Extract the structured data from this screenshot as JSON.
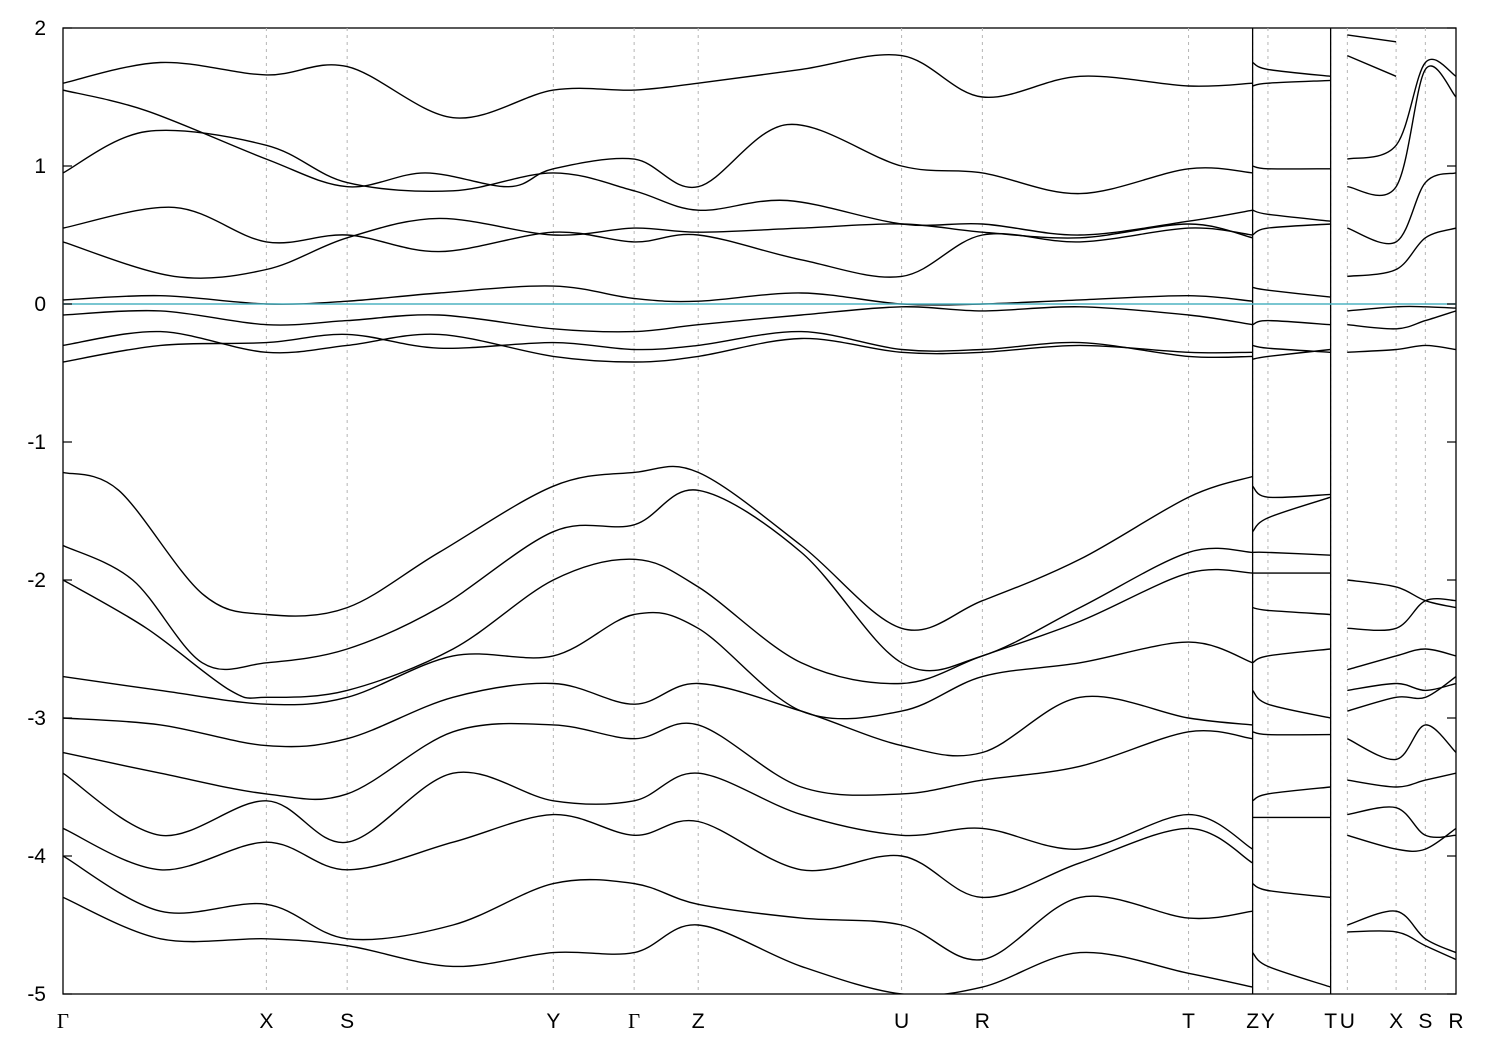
{
  "chart_data": {
    "type": "line",
    "title": "",
    "xlabel": "",
    "ylabel": "",
    "ylim": [
      -5,
      2
    ],
    "yticks": [
      2,
      1,
      0,
      -1,
      -2,
      -3,
      -4,
      -5
    ],
    "grid": "vertical dashed lines at high-symmetry k-points",
    "legend": "none",
    "kpoints": [
      {
        "label": "Γ",
        "x": 0.0
      },
      {
        "label": "X",
        "x": 0.146
      },
      {
        "label": "S",
        "x": 0.204
      },
      {
        "label": "Y",
        "x": 0.352
      },
      {
        "label": "Γ",
        "x": 0.41
      },
      {
        "label": "Z",
        "x": 0.456
      },
      {
        "label": "U",
        "x": 0.602
      },
      {
        "label": "R",
        "x": 0.66
      },
      {
        "label": "T",
        "x": 0.808
      },
      {
        "label": "Z",
        "x": 0.854
      },
      {
        "label": "Y",
        "x": 0.865
      },
      {
        "label": "T",
        "x": 0.91
      },
      {
        "label": "U",
        "x": 0.922
      },
      {
        "label": "X",
        "x": 0.957
      },
      {
        "label": "S",
        "x": 0.978
      },
      {
        "label": "R",
        "x": 1.0
      }
    ],
    "discontinuities_after": [
      "Z",
      "T"
    ],
    "fermi_level": 0,
    "fermi_color": "#4fb3c2",
    "band_color": "#000000",
    "series": [
      {
        "x": [
          0,
          0.07,
          0.146,
          0.204,
          0.28,
          0.352,
          0.41,
          0.456,
          0.53,
          0.602,
          0.66,
          0.73,
          0.808,
          0.854
        ],
        "y": [
          1.6,
          1.75,
          1.66,
          1.72,
          1.35,
          1.55,
          1.55,
          1.6,
          1.7,
          1.8,
          1.5,
          1.65,
          1.58,
          1.6
        ]
      },
      {
        "x": [
          0,
          0.06,
          0.146,
          0.204,
          0.26,
          0.32,
          0.352,
          0.41,
          0.456,
          0.52,
          0.602,
          0.66,
          0.73,
          0.808,
          0.854
        ],
        "y": [
          1.55,
          1.4,
          1.05,
          0.85,
          0.95,
          0.85,
          0.98,
          1.05,
          0.85,
          1.3,
          1.0,
          0.95,
          0.8,
          0.98,
          0.95
        ]
      },
      {
        "x": [
          0,
          0.06,
          0.146,
          0.204,
          0.28,
          0.352,
          0.41,
          0.456,
          0.52,
          0.602,
          0.66,
          0.73,
          0.808,
          0.854
        ],
        "y": [
          0.95,
          1.25,
          1.15,
          0.88,
          0.82,
          0.95,
          0.82,
          0.68,
          0.75,
          0.58,
          0.58,
          0.5,
          0.6,
          0.68
        ]
      },
      {
        "x": [
          0,
          0.08,
          0.146,
          0.204,
          0.27,
          0.352,
          0.41,
          0.456,
          0.53,
          0.602,
          0.66,
          0.73,
          0.808,
          0.854
        ],
        "y": [
          0.55,
          0.7,
          0.45,
          0.5,
          0.38,
          0.52,
          0.45,
          0.5,
          0.32,
          0.2,
          0.5,
          0.45,
          0.55,
          0.5
        ]
      },
      {
        "x": [
          0,
          0.08,
          0.146,
          0.204,
          0.27,
          0.352,
          0.41,
          0.456,
          0.53,
          0.602,
          0.66,
          0.73,
          0.808,
          0.854
        ],
        "y": [
          0.45,
          0.2,
          0.25,
          0.48,
          0.62,
          0.5,
          0.55,
          0.52,
          0.55,
          0.58,
          0.52,
          0.48,
          0.58,
          0.48
        ]
      },
      {
        "x": [
          0,
          0.07,
          0.146,
          0.204,
          0.27,
          0.352,
          0.41,
          0.456,
          0.53,
          0.602,
          0.66,
          0.73,
          0.808,
          0.854
        ],
        "y": [
          0.03,
          0.06,
          0.0,
          0.02,
          0.08,
          0.13,
          0.04,
          0.02,
          0.08,
          0.0,
          0.0,
          0.03,
          0.06,
          0.02
        ]
      },
      {
        "x": [
          0,
          0.07,
          0.146,
          0.204,
          0.27,
          0.352,
          0.41,
          0.456,
          0.53,
          0.602,
          0.66,
          0.73,
          0.808,
          0.854
        ],
        "y": [
          -0.08,
          -0.05,
          -0.15,
          -0.12,
          -0.08,
          -0.18,
          -0.2,
          -0.15,
          -0.08,
          -0.02,
          -0.05,
          -0.02,
          -0.08,
          -0.15
        ]
      },
      {
        "x": [
          0,
          0.07,
          0.146,
          0.204,
          0.27,
          0.352,
          0.41,
          0.456,
          0.53,
          0.602,
          0.66,
          0.73,
          0.808,
          0.854
        ],
        "y": [
          -0.3,
          -0.2,
          -0.35,
          -0.3,
          -0.22,
          -0.38,
          -0.42,
          -0.38,
          -0.25,
          -0.35,
          -0.35,
          -0.3,
          -0.35,
          -0.35
        ]
      },
      {
        "x": [
          0,
          0.07,
          0.146,
          0.204,
          0.27,
          0.352,
          0.41,
          0.456,
          0.53,
          0.602,
          0.66,
          0.73,
          0.808,
          0.854
        ],
        "y": [
          -0.42,
          -0.3,
          -0.28,
          -0.22,
          -0.32,
          -0.28,
          -0.33,
          -0.3,
          -0.2,
          -0.33,
          -0.33,
          -0.28,
          -0.38,
          -0.38
        ]
      },
      {
        "x": [
          0,
          0.04,
          0.1,
          0.146,
          0.204,
          0.27,
          0.352,
          0.41,
          0.456,
          0.53,
          0.602,
          0.66,
          0.73,
          0.808,
          0.854
        ],
        "y": [
          -1.22,
          -1.35,
          -2.1,
          -2.25,
          -2.2,
          -1.8,
          -1.32,
          -1.22,
          -1.22,
          -1.75,
          -2.35,
          -2.15,
          -1.85,
          -1.4,
          -1.25
        ]
      },
      {
        "x": [
          0,
          0.05,
          0.1,
          0.146,
          0.204,
          0.27,
          0.352,
          0.41,
          0.456,
          0.53,
          0.602,
          0.66,
          0.73,
          0.808,
          0.854
        ],
        "y": [
          -1.75,
          -2.0,
          -2.6,
          -2.6,
          -2.5,
          -2.2,
          -1.65,
          -1.6,
          -1.35,
          -1.8,
          -2.6,
          -2.55,
          -2.2,
          -1.8,
          -1.8
        ]
      },
      {
        "x": [
          0,
          0.06,
          0.12,
          0.146,
          0.204,
          0.28,
          0.352,
          0.41,
          0.456,
          0.53,
          0.602,
          0.66,
          0.73,
          0.808,
          0.854
        ],
        "y": [
          -2.0,
          -2.35,
          -2.8,
          -2.85,
          -2.8,
          -2.5,
          -2.0,
          -1.85,
          -2.05,
          -2.6,
          -2.75,
          -2.55,
          -2.3,
          -1.95,
          -1.95
        ]
      },
      {
        "x": [
          0,
          0.07,
          0.146,
          0.204,
          0.28,
          0.352,
          0.41,
          0.456,
          0.53,
          0.602,
          0.66,
          0.73,
          0.808,
          0.854
        ],
        "y": [
          -2.7,
          -2.8,
          -2.9,
          -2.85,
          -2.55,
          -2.55,
          -2.25,
          -2.35,
          -2.95,
          -2.95,
          -2.7,
          -2.6,
          -2.45,
          -2.6
        ]
      },
      {
        "x": [
          0,
          0.07,
          0.146,
          0.204,
          0.28,
          0.352,
          0.41,
          0.456,
          0.53,
          0.602,
          0.66,
          0.73,
          0.808,
          0.854
        ],
        "y": [
          -3.0,
          -3.05,
          -3.2,
          -3.15,
          -2.85,
          -2.75,
          -2.9,
          -2.75,
          -2.95,
          -3.2,
          -3.25,
          -2.85,
          -3.0,
          -3.05
        ]
      },
      {
        "x": [
          0,
          0.07,
          0.146,
          0.204,
          0.28,
          0.352,
          0.41,
          0.456,
          0.53,
          0.602,
          0.66,
          0.73,
          0.808,
          0.854
        ],
        "y": [
          -3.25,
          -3.4,
          -3.55,
          -3.55,
          -3.1,
          -3.05,
          -3.15,
          -3.05,
          -3.5,
          -3.55,
          -3.45,
          -3.35,
          -3.1,
          -3.15
        ]
      },
      {
        "x": [
          0,
          0.07,
          0.146,
          0.204,
          0.28,
          0.352,
          0.41,
          0.456,
          0.53,
          0.602,
          0.66,
          0.73,
          0.808,
          0.854
        ],
        "y": [
          -3.4,
          -3.85,
          -3.6,
          -3.9,
          -3.4,
          -3.6,
          -3.6,
          -3.4,
          -3.7,
          -3.85,
          -3.8,
          -3.95,
          -3.7,
          -3.95
        ]
      },
      {
        "x": [
          0,
          0.07,
          0.146,
          0.204,
          0.28,
          0.352,
          0.41,
          0.456,
          0.53,
          0.602,
          0.66,
          0.73,
          0.808,
          0.854
        ],
        "y": [
          -3.8,
          -4.1,
          -3.9,
          -4.1,
          -3.9,
          -3.7,
          -3.85,
          -3.75,
          -4.1,
          -4.0,
          -4.3,
          -4.05,
          -3.8,
          -4.05
        ]
      },
      {
        "x": [
          0,
          0.07,
          0.146,
          0.204,
          0.28,
          0.352,
          0.41,
          0.456,
          0.53,
          0.602,
          0.66,
          0.73,
          0.808,
          0.854
        ],
        "y": [
          -4.0,
          -4.4,
          -4.35,
          -4.6,
          -4.5,
          -4.2,
          -4.2,
          -4.35,
          -4.45,
          -4.5,
          -4.75,
          -4.3,
          -4.45,
          -4.4
        ]
      },
      {
        "x": [
          0,
          0.07,
          0.146,
          0.204,
          0.28,
          0.352,
          0.41,
          0.456,
          0.53,
          0.602,
          0.66,
          0.73,
          0.808,
          0.854
        ],
        "y": [
          -4.3,
          -4.6,
          -4.6,
          -4.65,
          -4.8,
          -4.7,
          -4.7,
          -4.5,
          -4.8,
          -5.0,
          -4.95,
          -4.7,
          -4.85,
          -4.95
        ]
      },
      {
        "x": [
          0.854,
          0.865,
          0.91
        ],
        "y": [
          1.75,
          1.7,
          1.65
        ]
      },
      {
        "x": [
          0.854,
          0.865,
          0.91
        ],
        "y": [
          1.58,
          1.6,
          1.62
        ]
      },
      {
        "x": [
          0.854,
          0.865,
          0.91
        ],
        "y": [
          1.0,
          0.98,
          0.98
        ]
      },
      {
        "x": [
          0.854,
          0.865,
          0.91
        ],
        "y": [
          0.68,
          0.65,
          0.6
        ]
      },
      {
        "x": [
          0.854,
          0.865,
          0.91
        ],
        "y": [
          0.5,
          0.55,
          0.58
        ]
      },
      {
        "x": [
          0.854,
          0.865,
          0.91
        ],
        "y": [
          0.12,
          0.1,
          0.05
        ]
      },
      {
        "x": [
          0.854,
          0.865,
          0.91
        ],
        "y": [
          -0.15,
          -0.12,
          -0.15
        ]
      },
      {
        "x": [
          0.854,
          0.865,
          0.91
        ],
        "y": [
          -0.3,
          -0.32,
          -0.35
        ]
      },
      {
        "x": [
          0.854,
          0.865,
          0.91
        ],
        "y": [
          -0.4,
          -0.38,
          -0.33
        ]
      },
      {
        "x": [
          0.854,
          0.865,
          0.91
        ],
        "y": [
          -1.32,
          -1.4,
          -1.38
        ]
      },
      {
        "x": [
          0.854,
          0.865,
          0.91
        ],
        "y": [
          -1.65,
          -1.55,
          -1.4
        ]
      },
      {
        "x": [
          0.854,
          0.865,
          0.91
        ],
        "y": [
          -1.8,
          -1.8,
          -1.82
        ]
      },
      {
        "x": [
          0.854,
          0.865,
          0.91
        ],
        "y": [
          -1.95,
          -1.95,
          -1.95
        ]
      },
      {
        "x": [
          0.854,
          0.865,
          0.91
        ],
        "y": [
          -2.2,
          -2.22,
          -2.25
        ]
      },
      {
        "x": [
          0.854,
          0.865,
          0.91
        ],
        "y": [
          -2.6,
          -2.55,
          -2.5
        ]
      },
      {
        "x": [
          0.854,
          0.865,
          0.91
        ],
        "y": [
          -2.8,
          -2.9,
          -3.0
        ]
      },
      {
        "x": [
          0.854,
          0.865,
          0.91
        ],
        "y": [
          -3.1,
          -3.12,
          -3.12
        ]
      },
      {
        "x": [
          0.854,
          0.865,
          0.91
        ],
        "y": [
          -3.6,
          -3.55,
          -3.5
        ]
      },
      {
        "x": [
          0.854,
          0.865,
          0.91
        ],
        "y": [
          -3.72,
          -3.72,
          -3.72
        ]
      },
      {
        "x": [
          0.854,
          0.865,
          0.91
        ],
        "y": [
          -4.2,
          -4.25,
          -4.3
        ]
      },
      {
        "x": [
          0.854,
          0.865,
          0.91
        ],
        "y": [
          -4.7,
          -4.8,
          -4.95
        ]
      },
      {
        "x": [
          0.922,
          0.957
        ],
        "y": [
          1.95,
          1.9
        ]
      },
      {
        "x": [
          0.922,
          0.957
        ],
        "y": [
          1.8,
          1.65
        ]
      },
      {
        "x": [
          0.922,
          0.957,
          0.978,
          1.0
        ],
        "y": [
          1.05,
          1.15,
          1.75,
          1.65
        ]
      },
      {
        "x": [
          0.922,
          0.957,
          0.978,
          1.0
        ],
        "y": [
          0.85,
          0.85,
          1.7,
          1.5
        ]
      },
      {
        "x": [
          0.922,
          0.957,
          0.978,
          1.0
        ],
        "y": [
          0.55,
          0.45,
          0.88,
          0.95
        ]
      },
      {
        "x": [
          0.922,
          0.957,
          0.978,
          1.0
        ],
        "y": [
          0.2,
          0.25,
          0.48,
          0.55
        ]
      },
      {
        "x": [
          0.922,
          0.957,
          0.978,
          1.0
        ],
        "y": [
          -0.05,
          -0.02,
          -0.02,
          -0.03
        ]
      },
      {
        "x": [
          0.922,
          0.957,
          0.978,
          1.0
        ],
        "y": [
          -0.15,
          -0.18,
          -0.12,
          -0.05
        ]
      },
      {
        "x": [
          0.922,
          0.957,
          0.978,
          1.0
        ],
        "y": [
          -0.35,
          -0.33,
          -0.3,
          -0.33
        ]
      },
      {
        "x": [
          0.922,
          0.957,
          0.978,
          1.0
        ],
        "y": [
          -2.0,
          -2.05,
          -2.15,
          -2.2
        ]
      },
      {
        "x": [
          0.922,
          0.957,
          0.978,
          1.0
        ],
        "y": [
          -2.35,
          -2.35,
          -2.15,
          -2.15
        ]
      },
      {
        "x": [
          0.922,
          0.957,
          0.978,
          1.0
        ],
        "y": [
          -2.65,
          -2.55,
          -2.5,
          -2.55
        ]
      },
      {
        "x": [
          0.922,
          0.957,
          0.978,
          1.0
        ],
        "y": [
          -2.8,
          -2.75,
          -2.8,
          -2.75
        ]
      },
      {
        "x": [
          0.922,
          0.957,
          0.978,
          1.0
        ],
        "y": [
          -2.95,
          -2.85,
          -2.85,
          -2.7
        ]
      },
      {
        "x": [
          0.922,
          0.957,
          0.978,
          1.0
        ],
        "y": [
          -3.15,
          -3.3,
          -3.05,
          -3.25
        ]
      },
      {
        "x": [
          0.922,
          0.957,
          0.978,
          1.0
        ],
        "y": [
          -3.45,
          -3.5,
          -3.45,
          -3.4
        ]
      },
      {
        "x": [
          0.922,
          0.957,
          0.978,
          1.0
        ],
        "y": [
          -3.7,
          -3.65,
          -3.85,
          -3.85
        ]
      },
      {
        "x": [
          0.922,
          0.957,
          0.978,
          1.0
        ],
        "y": [
          -3.85,
          -3.95,
          -3.95,
          -3.8
        ]
      },
      {
        "x": [
          0.922,
          0.957,
          0.978,
          1.0
        ],
        "y": [
          -4.5,
          -4.4,
          -4.6,
          -4.7
        ]
      },
      {
        "x": [
          0.922,
          0.957,
          0.978,
          1.0
        ],
        "y": [
          -4.55,
          -4.55,
          -4.65,
          -4.75
        ]
      }
    ]
  }
}
